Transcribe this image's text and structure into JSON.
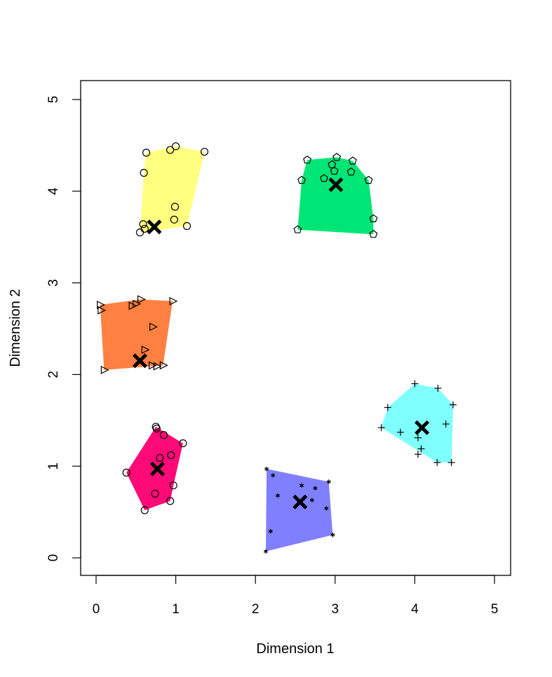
{
  "chart_data": {
    "type": "scatter",
    "title": "",
    "xlabel": "Dimension 1",
    "ylabel": "Dimension 2",
    "xlim": [
      -0.2,
      5.2
    ],
    "ylim": [
      -0.2,
      5.1
    ],
    "xticks": [
      "0",
      "1",
      "2",
      "3",
      "4",
      "5"
    ],
    "yticks": [
      "0",
      "1",
      "2",
      "3",
      "4",
      "5"
    ],
    "grid": false,
    "legend": "none",
    "clusters": [
      {
        "color": "#FF0A77",
        "marker": "circle",
        "center": [
          0.77,
          0.97
        ],
        "hull": [
          [
            0.75,
            1.43
          ],
          [
            1.09,
            1.25
          ],
          [
            0.97,
            0.79
          ],
          [
            0.93,
            0.62
          ],
          [
            0.61,
            0.52
          ],
          [
            0.38,
            0.93
          ]
        ],
        "points": [
          [
            0.75,
            1.43
          ],
          [
            1.09,
            1.25
          ],
          [
            0.97,
            0.79
          ],
          [
            0.93,
            0.62
          ],
          [
            0.61,
            0.52
          ],
          [
            0.38,
            0.93
          ],
          [
            0.76,
            1.41
          ],
          [
            0.85,
            1.34
          ],
          [
            0.94,
            1.12
          ],
          [
            0.8,
            1.09
          ],
          [
            0.74,
            0.7
          ]
        ]
      },
      {
        "color": "#8080FF",
        "marker": "asterisk",
        "center": [
          2.56,
          0.61
        ],
        "hull": [
          [
            2.14,
            0.97
          ],
          [
            2.92,
            0.83
          ],
          [
            2.97,
            0.25
          ],
          [
            2.13,
            0.07
          ]
        ],
        "points": [
          [
            2.14,
            0.97
          ],
          [
            2.22,
            0.9
          ],
          [
            2.92,
            0.83
          ],
          [
            2.58,
            0.79
          ],
          [
            2.75,
            0.76
          ],
          [
            2.28,
            0.68
          ],
          [
            2.71,
            0.63
          ],
          [
            2.89,
            0.54
          ],
          [
            2.19,
            0.29
          ],
          [
            2.97,
            0.25
          ],
          [
            2.13,
            0.07
          ]
        ]
      },
      {
        "color": "#80FFFF",
        "marker": "plus",
        "center": [
          4.09,
          1.42
        ],
        "hull": [
          [
            4.0,
            1.9
          ],
          [
            4.29,
            1.85
          ],
          [
            4.48,
            1.67
          ],
          [
            4.46,
            1.04
          ],
          [
            4.28,
            1.04
          ],
          [
            3.58,
            1.42
          ],
          [
            3.66,
            1.64
          ]
        ],
        "points": [
          [
            4.0,
            1.9
          ],
          [
            4.29,
            1.85
          ],
          [
            4.48,
            1.67
          ],
          [
            3.66,
            1.64
          ],
          [
            3.58,
            1.42
          ],
          [
            4.39,
            1.46
          ],
          [
            3.82,
            1.37
          ],
          [
            4.04,
            1.31
          ],
          [
            4.08,
            1.19
          ],
          [
            4.04,
            1.13
          ],
          [
            4.28,
            1.04
          ],
          [
            4.46,
            1.04
          ]
        ]
      },
      {
        "color": "#FF8040",
        "marker": "triangle-right",
        "center": [
          0.55,
          2.15
        ],
        "hull": [
          [
            0.05,
            2.76
          ],
          [
            0.56,
            2.82
          ],
          [
            0.96,
            2.8
          ],
          [
            0.84,
            2.1
          ],
          [
            0.1,
            2.05
          ]
        ],
        "points": [
          [
            0.05,
            2.76
          ],
          [
            0.06,
            2.7
          ],
          [
            0.45,
            2.75
          ],
          [
            0.5,
            2.77
          ],
          [
            0.56,
            2.82
          ],
          [
            0.96,
            2.8
          ],
          [
            0.71,
            2.52
          ],
          [
            0.61,
            2.27
          ],
          [
            0.7,
            2.1
          ],
          [
            0.76,
            2.09
          ],
          [
            0.84,
            2.1
          ],
          [
            0.1,
            2.05
          ]
        ]
      },
      {
        "color": "#FFFF80",
        "marker": "circle",
        "center": [
          0.73,
          3.61
        ],
        "hull": [
          [
            0.63,
            4.42
          ],
          [
            1.0,
            4.49
          ],
          [
            1.36,
            4.43
          ],
          [
            1.14,
            3.62
          ],
          [
            0.55,
            3.55
          ],
          [
            0.6,
            4.2
          ]
        ],
        "points": [
          [
            0.63,
            4.42
          ],
          [
            0.93,
            4.45
          ],
          [
            1.0,
            4.49
          ],
          [
            1.36,
            4.43
          ],
          [
            0.6,
            4.2
          ],
          [
            0.99,
            3.83
          ],
          [
            0.98,
            3.69
          ],
          [
            1.14,
            3.62
          ],
          [
            0.59,
            3.64
          ],
          [
            0.61,
            3.59
          ],
          [
            0.55,
            3.55
          ]
        ]
      },
      {
        "color": "#00E676",
        "marker": "pentagon",
        "center": [
          3.01,
          4.07
        ],
        "hull": [
          [
            2.65,
            4.34
          ],
          [
            3.02,
            4.37
          ],
          [
            3.22,
            4.33
          ],
          [
            3.42,
            4.12
          ],
          [
            3.48,
            3.7
          ],
          [
            3.48,
            3.53
          ],
          [
            2.53,
            3.58
          ],
          [
            2.58,
            4.12
          ]
        ],
        "points": [
          [
            2.65,
            4.34
          ],
          [
            3.02,
            4.37
          ],
          [
            3.22,
            4.33
          ],
          [
            2.96,
            4.29
          ],
          [
            2.99,
            4.22
          ],
          [
            3.2,
            4.21
          ],
          [
            2.86,
            4.14
          ],
          [
            2.58,
            4.12
          ],
          [
            3.42,
            4.12
          ],
          [
            3.48,
            3.7
          ],
          [
            2.53,
            3.58
          ],
          [
            3.48,
            3.53
          ]
        ]
      }
    ]
  }
}
